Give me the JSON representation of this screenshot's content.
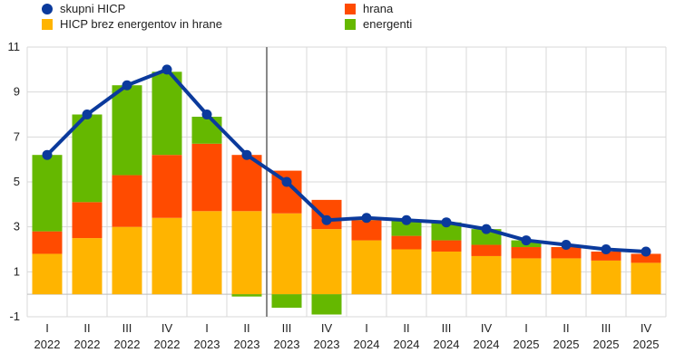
{
  "chart_data": {
    "type": "bar",
    "title": "",
    "xlabel": "",
    "ylabel": "",
    "ylim": [
      -1,
      11
    ],
    "yticks": [
      -1,
      1,
      3,
      5,
      7,
      9,
      11
    ],
    "grid": true,
    "legend_position": "top",
    "colors": {
      "line": "#0b3a9c",
      "core": "#ffb400",
      "food": "#ff4b00",
      "energy": "#65b800",
      "grid": "#d9d9d9",
      "divider": "#888888"
    },
    "divider_after_index": 5,
    "categories": [
      [
        "I",
        "2022"
      ],
      [
        "II",
        "2022"
      ],
      [
        "III",
        "2022"
      ],
      [
        "IV",
        "2022"
      ],
      [
        "I",
        "2023"
      ],
      [
        "II",
        "2023"
      ],
      [
        "III",
        "2023"
      ],
      [
        "IV",
        "2023"
      ],
      [
        "I",
        "2024"
      ],
      [
        "II",
        "2024"
      ],
      [
        "III",
        "2024"
      ],
      [
        "IV",
        "2024"
      ],
      [
        "I",
        "2025"
      ],
      [
        "II",
        "2025"
      ],
      [
        "III",
        "2025"
      ],
      [
        "IV",
        "2025"
      ]
    ],
    "series": [
      {
        "name": "skupni HICP",
        "kind": "line",
        "color_key": "line",
        "values": [
          6.2,
          8.0,
          9.3,
          10.0,
          8.0,
          6.2,
          5.0,
          3.3,
          3.4,
          3.3,
          3.2,
          2.9,
          2.4,
          2.2,
          2.0,
          1.9
        ]
      },
      {
        "name": "hrana",
        "kind": "bar",
        "color_key": "food",
        "values": [
          1.0,
          1.6,
          2.3,
          2.8,
          3.0,
          2.5,
          1.9,
          1.3,
          0.9,
          0.6,
          0.5,
          0.5,
          0.5,
          0.5,
          0.4,
          0.4
        ]
      },
      {
        "name": "HICP brez energentov in hrane",
        "kind": "bar",
        "color_key": "core",
        "values": [
          1.8,
          2.5,
          3.0,
          3.4,
          3.7,
          3.7,
          3.6,
          2.9,
          2.4,
          2.0,
          1.9,
          1.7,
          1.6,
          1.6,
          1.5,
          1.4
        ]
      },
      {
        "name": "energenti",
        "kind": "bar",
        "color_key": "energy",
        "values": [
          3.4,
          3.9,
          4.0,
          3.7,
          1.2,
          -0.1,
          -0.6,
          -0.9,
          0.1,
          0.7,
          0.8,
          0.7,
          0.3,
          0.0,
          0.0,
          0.0
        ]
      }
    ]
  }
}
